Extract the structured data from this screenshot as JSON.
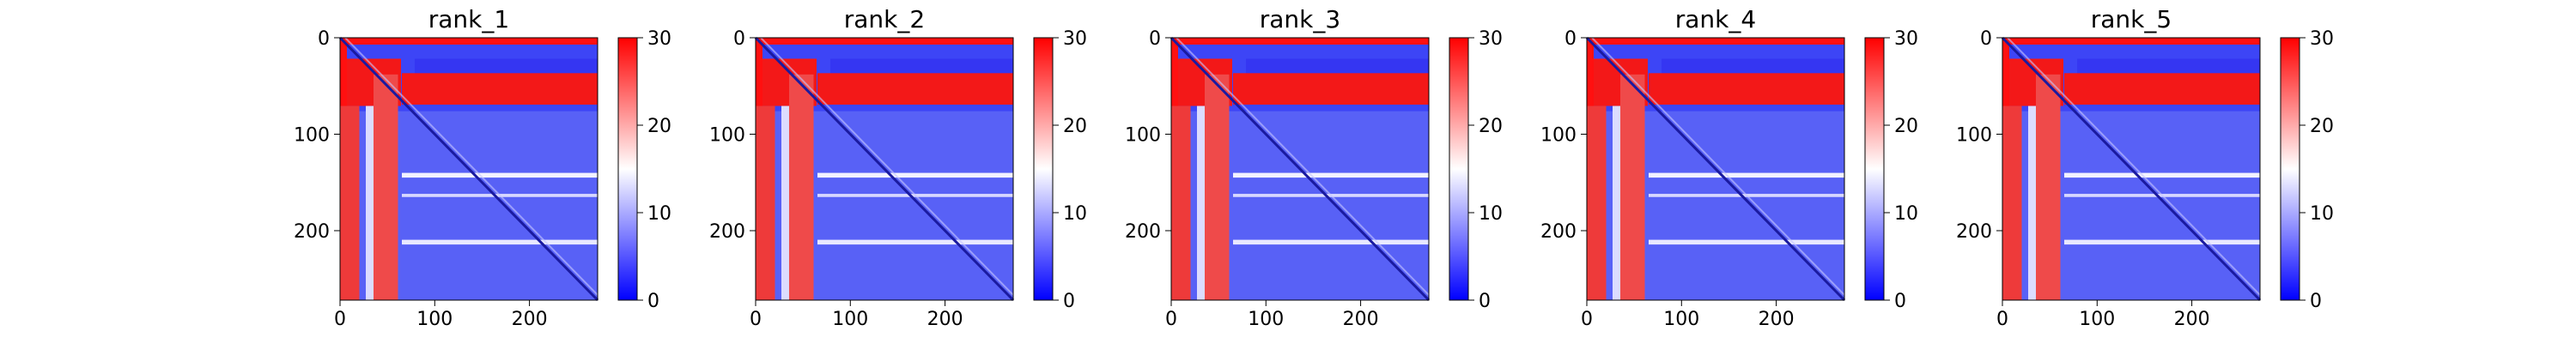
{
  "chart_data": [
    {
      "type": "heatmap",
      "title": "rank_1",
      "x_ticks": [
        "0",
        "100",
        "200"
      ],
      "y_ticks": [
        "0",
        "100",
        "200"
      ],
      "xlim": [
        0,
        272
      ],
      "ylim": [
        272,
        0
      ],
      "colorbar": {
        "cmap": "bwr",
        "range": [
          0,
          30
        ],
        "ticks": [
          "0",
          "10",
          "20",
          "30"
        ]
      }
    },
    {
      "type": "heatmap",
      "title": "rank_2",
      "x_ticks": [
        "0",
        "100",
        "200"
      ],
      "y_ticks": [
        "0",
        "100",
        "200"
      ],
      "xlim": [
        0,
        272
      ],
      "ylim": [
        272,
        0
      ],
      "colorbar": {
        "cmap": "bwr",
        "range": [
          0,
          30
        ],
        "ticks": [
          "0",
          "10",
          "20",
          "30"
        ]
      }
    },
    {
      "type": "heatmap",
      "title": "rank_3",
      "x_ticks": [
        "0",
        "100",
        "200"
      ],
      "y_ticks": [
        "0",
        "100",
        "200"
      ],
      "xlim": [
        0,
        272
      ],
      "ylim": [
        272,
        0
      ],
      "colorbar": {
        "cmap": "bwr",
        "range": [
          0,
          30
        ],
        "ticks": [
          "0",
          "10",
          "20",
          "30"
        ]
      }
    },
    {
      "type": "heatmap",
      "title": "rank_4",
      "x_ticks": [
        "0",
        "100",
        "200"
      ],
      "y_ticks": [
        "0",
        "100",
        "200"
      ],
      "xlim": [
        0,
        272
      ],
      "ylim": [
        272,
        0
      ],
      "colorbar": {
        "cmap": "bwr",
        "range": [
          0,
          30
        ],
        "ticks": [
          "0",
          "10",
          "20",
          "30"
        ]
      }
    },
    {
      "type": "heatmap",
      "title": "rank_5",
      "x_ticks": [
        "0",
        "100",
        "200"
      ],
      "y_ticks": [
        "0",
        "100",
        "200"
      ],
      "xlim": [
        0,
        272
      ],
      "ylim": [
        272,
        0
      ],
      "colorbar": {
        "cmap": "bwr",
        "range": [
          0,
          30
        ],
        "ticks": [
          "0",
          "10",
          "20",
          "30"
        ]
      }
    }
  ],
  "colors": {
    "low": "#0000ff",
    "mid": "#ffffff",
    "high": "#ff0000"
  }
}
